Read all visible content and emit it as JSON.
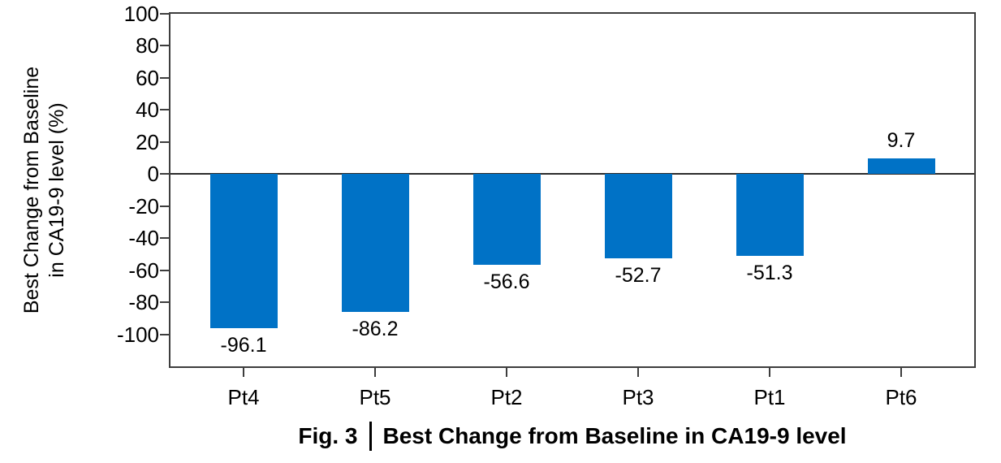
{
  "figure": {
    "caption_prefix": "Fig. 3",
    "caption_title": "Best Change from Baseline in CA19-9 level"
  },
  "chart_data": {
    "type": "bar",
    "title": "Fig. 3 | Best Change from Baseline in CA19-9 level",
    "ylabel_lines": [
      "Best Change from Baseline",
      "in CA19-9 level (%)"
    ],
    "xlabel": "",
    "categories": [
      "Pt4",
      "Pt5",
      "Pt2",
      "Pt3",
      "Pt1",
      "Pt6"
    ],
    "values": [
      -96.1,
      -86.2,
      -56.6,
      -52.7,
      -51.3,
      9.7
    ],
    "value_labels": [
      "-96.1",
      "-86.2",
      "-56.6",
      "-52.7",
      "-51.3",
      "9.7"
    ],
    "yticks": [
      100,
      80,
      60,
      40,
      20,
      0,
      -20,
      -40,
      -60,
      -80,
      -100
    ],
    "ylim": [
      -120,
      100
    ],
    "grid": false,
    "legend_position": "none",
    "bar_color": "#0072C6",
    "axis_color": "#3D3D3D",
    "zero_line_color": "#2B2B2B",
    "text_color": "#000000"
  }
}
